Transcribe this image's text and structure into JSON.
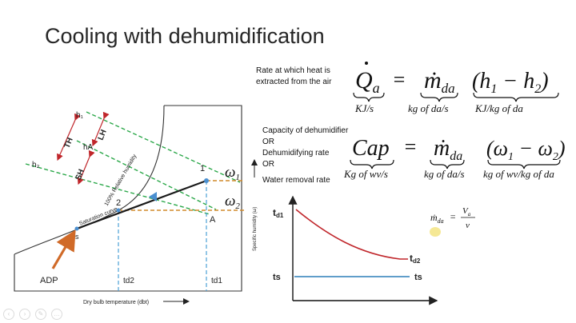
{
  "title": "Cooling with dehumidification",
  "psychro": {
    "labels": {
      "h1": "h₁",
      "hA": "hA",
      "h2": "h₂",
      "TH": "TH",
      "LH": "LH",
      "SH": "SH",
      "rh": "100% Relative humidity",
      "sat": "Saturation curve",
      "p1": "1",
      "p2": "2",
      "pA": "A",
      "pS": "s",
      "adp": "ADP",
      "td2": "td2",
      "td1": "td1",
      "w1": "ω",
      "w1sub": "1",
      "w2": "ω",
      "w2sub": "2",
      "xaxis": "Dry bulb temperature (dbt)",
      "yaxis": "Specific humidity (ω)"
    }
  },
  "eq1": {
    "desc_line1": "Rate at which heat is",
    "desc_line2": "extracted from the air",
    "lhs": "Q",
    "lhs_sub": "a",
    "lhs_unit": "KJ/s",
    "eq": "=",
    "m": "ṁ",
    "m_sub": "da",
    "m_unit": "kg of da/s",
    "paren": "(h",
    "paren_sub1": "1",
    "paren_mid": " − h",
    "paren_sub2": "2",
    "paren_close": ")",
    "paren_unit": "KJ/kg of da"
  },
  "eq2": {
    "desc": [
      "Capacity of dehumidifier",
      "OR",
      "Dehumidifying rate",
      "OR",
      "Water removal rate"
    ],
    "lhs": "Cap",
    "lhs_unit": "Kg of wv/s",
    "eq": "=",
    "m": "ṁ",
    "m_sub": "da",
    "m_unit": "kg of da/s",
    "paren": "(ω",
    "paren_sub1": "1",
    "paren_mid": " − ω",
    "paren_sub2": "2",
    "paren_close": ")",
    "paren_unit": "kg of wv/kg of da"
  },
  "eq3": {
    "lhs": "ṁ",
    "lhs_sub": "da",
    "eq": "=",
    "num": "V",
    "num_sub": "a",
    "den": "v"
  },
  "cooling_plot": {
    "td1": "t",
    "td1_sub": "d1",
    "td2": "t",
    "td2_sub": "d2",
    "ts": "ts",
    "ts_right": "ts"
  },
  "colors": {
    "green_dash": "#2ca84a",
    "orange_dash": "#d08a2a",
    "blue_dash": "#4a9fd6",
    "red": "#c0262b",
    "blue": "#2b7fb8",
    "orange_arrow": "#d06a28"
  }
}
